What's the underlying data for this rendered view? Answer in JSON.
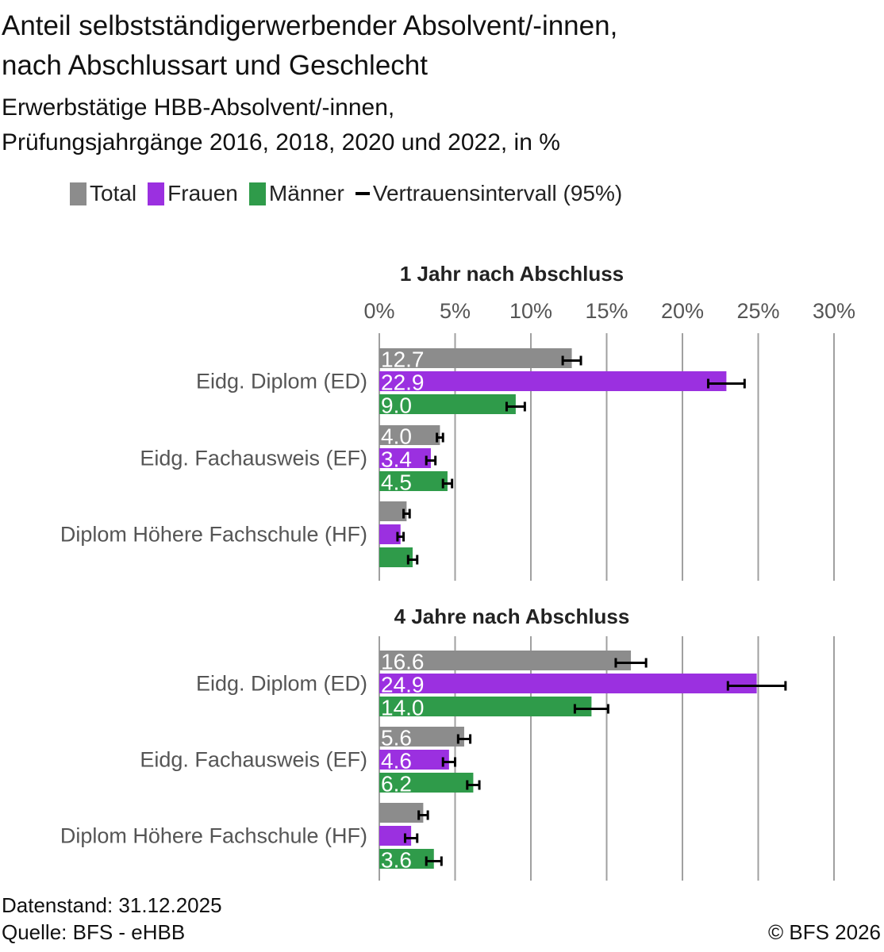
{
  "title_line1": "Anteil selbstständigerwerbender Absolvent/-innen,",
  "title_line2": "nach Abschlussart und Geschlecht",
  "subtitle_line1": "Erwerbstätige HBB-Absolvent/-innen,",
  "subtitle_line2": "Prüfungsjahrgänge 2016, 2018, 2020 und 2022, in %",
  "legend": {
    "total": "Total",
    "frauen": "Frauen",
    "maenner": "Männer",
    "ci": "Vertrauensintervall (95%)"
  },
  "colors": {
    "total": "#8c8c8c",
    "frauen": "#9b30e0",
    "maenner": "#2f9b4a",
    "grid": "#a0a0a0",
    "ci": "#000000"
  },
  "footer": {
    "datenstand": "Datenstand: 31.12.2025",
    "quelle": "Quelle: BFS - eHBB",
    "copyright": "© BFS 2026"
  },
  "chart_data": [
    {
      "type": "bar",
      "orientation": "horizontal",
      "title": "1 Jahr nach Abschluss",
      "xlim": [
        0,
        30
      ],
      "ticks": [
        "0%",
        "5%",
        "10%",
        "15%",
        "20%",
        "25%",
        "30%"
      ],
      "grid": true,
      "categories": [
        "Eidg. Diplom (ED)",
        "Eidg. Fachausweis (EF)",
        "Diplom Höhere Fachschule (HF)"
      ],
      "series": [
        {
          "name": "Total",
          "values": [
            12.7,
            4.0,
            1.8
          ],
          "labels": [
            "12.7",
            "4.0",
            ""
          ],
          "ci": [
            [
              12.1,
              13.3
            ],
            [
              3.8,
              4.2
            ],
            [
              1.6,
              2.0
            ]
          ]
        },
        {
          "name": "Frauen",
          "values": [
            22.9,
            3.4,
            1.4
          ],
          "labels": [
            "22.9",
            "3.4",
            ""
          ],
          "ci": [
            [
              21.7,
              24.1
            ],
            [
              3.1,
              3.7
            ],
            [
              1.2,
              1.6
            ]
          ]
        },
        {
          "name": "Männer",
          "values": [
            9.0,
            4.5,
            2.2
          ],
          "labels": [
            "9.0",
            "4.5",
            ""
          ],
          "ci": [
            [
              8.4,
              9.6
            ],
            [
              4.2,
              4.8
            ],
            [
              1.9,
              2.5
            ]
          ]
        }
      ]
    },
    {
      "type": "bar",
      "orientation": "horizontal",
      "title": "4 Jahre nach Abschluss",
      "xlim": [
        0,
        30
      ],
      "grid": true,
      "categories": [
        "Eidg. Diplom (ED)",
        "Eidg. Fachausweis (EF)",
        "Diplom Höhere Fachschule (HF)"
      ],
      "series": [
        {
          "name": "Total",
          "values": [
            16.6,
            5.6,
            2.9
          ],
          "labels": [
            "16.6",
            "5.6",
            ""
          ],
          "ci": [
            [
              15.6,
              17.6
            ],
            [
              5.2,
              6.0
            ],
            [
              2.6,
              3.2
            ]
          ]
        },
        {
          "name": "Frauen",
          "values": [
            24.9,
            4.6,
            2.1
          ],
          "labels": [
            "24.9",
            "4.6",
            ""
          ],
          "ci": [
            [
              23.0,
              26.8
            ],
            [
              4.2,
              5.0
            ],
            [
              1.7,
              2.5
            ]
          ]
        },
        {
          "name": "Männer",
          "values": [
            14.0,
            6.2,
            3.6
          ],
          "labels": [
            "14.0",
            "6.2",
            "3.6"
          ],
          "ci": [
            [
              12.9,
              15.1
            ],
            [
              5.8,
              6.6
            ],
            [
              3.1,
              4.1
            ]
          ]
        }
      ]
    }
  ]
}
